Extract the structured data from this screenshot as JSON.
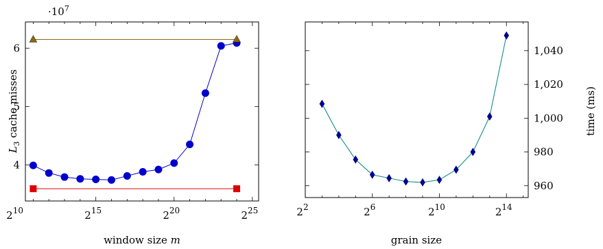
{
  "chart_data": [
    {
      "type": "line",
      "xlabel": "window size m",
      "xlabel_text": "window size",
      "xlabel_var": "m",
      "ylabel": "L3 cache misses",
      "ylabel_L": "L",
      "ylabel_sub": "3",
      "ylabel_rest": " cache misses",
      "y_multiplier": {
        "base": "·10",
        "exp": "7"
      },
      "x_scale": "log2",
      "xlim": [
        10.5,
        25.4
      ],
      "ylim": [
        3.38,
        6.45
      ],
      "x_ticks": [
        10,
        15,
        20,
        25
      ],
      "x_tick_base": "2",
      "y_ticks": [
        4,
        5,
        6
      ],
      "y_tick_labels": [
        "4",
        "5",
        "6"
      ],
      "series": [
        {
          "color": "#0000cc",
          "marker": "circle",
          "x": [
            11,
            12,
            13,
            14,
            15,
            16,
            17,
            18,
            19,
            20,
            21,
            22,
            23,
            24
          ],
          "y": [
            3.99,
            3.86,
            3.79,
            3.76,
            3.75,
            3.74,
            3.81,
            3.88,
            3.92,
            4.03,
            4.35,
            5.23,
            6.04,
            6.09
          ]
        },
        {
          "color": "#8b6914",
          "marker": "triangle",
          "x": [
            11,
            24
          ],
          "y": [
            6.15,
            6.15
          ]
        },
        {
          "color": "#dd0000",
          "marker": "square",
          "x": [
            11,
            24
          ],
          "y": [
            3.59,
            3.59
          ]
        }
      ]
    },
    {
      "type": "line",
      "xlabel": "grain size",
      "ylabel": "time (ms)",
      "x_scale": "log2",
      "xlim": [
        2,
        15.3
      ],
      "ylim": [
        953,
        1057
      ],
      "x_ticks": [
        2,
        6,
        10,
        14
      ],
      "x_tick_base": "2",
      "y_ticks": [
        960,
        980,
        1000,
        1020,
        1040
      ],
      "y_tick_labels": [
        "960",
        "980",
        "1,000",
        "1,020",
        "1,040"
      ],
      "series": [
        {
          "color": "#008080",
          "marker_color": "#00008b",
          "marker": "diamond",
          "x": [
            3,
            4,
            5,
            6,
            7,
            8,
            9,
            10,
            11,
            12,
            13,
            14
          ],
          "y": [
            1008.5,
            990,
            975.5,
            966.5,
            964.5,
            962.5,
            962,
            963.5,
            969.5,
            980,
            1001,
            1049
          ]
        }
      ]
    }
  ]
}
